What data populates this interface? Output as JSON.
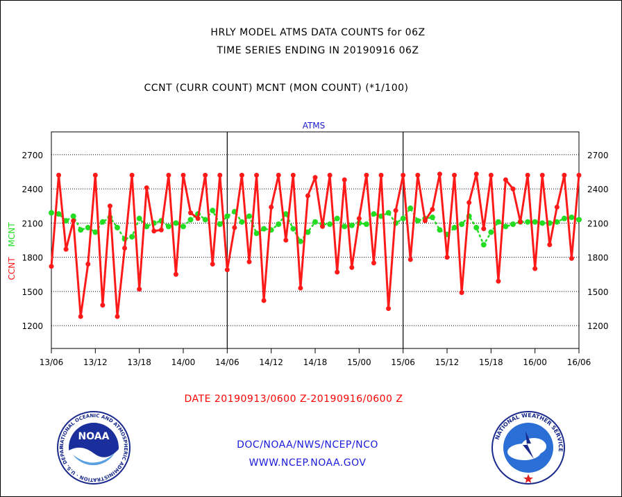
{
  "header": {
    "title_line1": "HRLY MODEL ATMS DATA COUNTS for 06Z",
    "title_line2": "TIME SERIES ENDING IN 20190916 06Z",
    "subtitle": "CCNT (CURR COUNT) MCNT (MON COUNT) (*1/100)"
  },
  "footer": {
    "date_range": "DATE 20190913/0600 Z-20190916/0600 Z",
    "credit_line1": "DOC/NOAA/NWS/NCEP/NCO",
    "credit_line2": "WWW.NCEP.NOAA.GOV"
  },
  "logos": {
    "noaa_badge": "NOAA",
    "noaa_ring": "NATIONAL OCEANIC AND ATMOSPHERIC ADMINISTRATION · U.S. DEPARTMENT OF COMMERCE",
    "nws_ring": "NATIONAL WEATHER SERVICE"
  },
  "colors": {
    "ccnt": "#ff1a1a",
    "mcnt": "#22dd22",
    "panel_label": "#1a1acc",
    "axis": "#000000"
  },
  "chart_data": {
    "type": "line",
    "panel_label": "ATMS",
    "ylabel_left": "CCNT",
    "ylabel_right": "MCNT",
    "ylim": [
      1000,
      2900
    ],
    "yticks": [
      1200,
      1500,
      1800,
      2100,
      2400,
      2700
    ],
    "xlim": [
      0,
      72
    ],
    "x_tick_labels": [
      "13/06",
      "13/12",
      "13/18",
      "14/00",
      "14/06",
      "14/12",
      "14/18",
      "15/00",
      "15/06",
      "15/12",
      "15/18",
      "16/00",
      "16/06"
    ],
    "x_tick_hours": [
      0,
      6,
      12,
      18,
      24,
      30,
      36,
      42,
      48,
      54,
      60,
      66,
      72
    ],
    "day_separators_hours": [
      24,
      48
    ],
    "grid": "horizontal dotted",
    "series": [
      {
        "name": "CCNT",
        "x": [
          0,
          1,
          2,
          3,
          4,
          5,
          6,
          7,
          8,
          9,
          10,
          11,
          12,
          13,
          14,
          15,
          16,
          17,
          18,
          19,
          20,
          21,
          22,
          23,
          24,
          25,
          26,
          27,
          28,
          29,
          30,
          31,
          32,
          33,
          34,
          35,
          36,
          37,
          38,
          39,
          40,
          41,
          42,
          43,
          44,
          45,
          46,
          47,
          48,
          49,
          50,
          51,
          52,
          53,
          54,
          55,
          56,
          57,
          58,
          59,
          60,
          61,
          62,
          63,
          64,
          65,
          66,
          67,
          68,
          69,
          70,
          71,
          72
        ],
        "values": [
          1720,
          2520,
          1870,
          2120,
          1280,
          1740,
          2520,
          1380,
          2250,
          1280,
          1880,
          2520,
          1520,
          2410,
          2030,
          2040,
          2520,
          1650,
          2520,
          2190,
          2140,
          2520,
          1740,
          2520,
          1690,
          2060,
          2520,
          1760,
          2520,
          1420,
          2240,
          2520,
          1950,
          2520,
          1530,
          2340,
          2500,
          2070,
          2520,
          1670,
          2480,
          1710,
          2140,
          2520,
          1750,
          2520,
          1350,
          2210,
          2520,
          1780,
          2520,
          2120,
          2220,
          2530,
          1800,
          2520,
          1490,
          2280,
          2530,
          2050,
          2520,
          1590,
          2480,
          2400,
          2110,
          2520,
          1700,
          2520,
          1910,
          2240,
          2520,
          1790,
          2520
        ]
      },
      {
        "name": "MCNT",
        "x": [
          0,
          1,
          2,
          3,
          4,
          5,
          6,
          7,
          8,
          9,
          10,
          11,
          12,
          13,
          14,
          15,
          16,
          17,
          18,
          19,
          20,
          21,
          22,
          23,
          24,
          25,
          26,
          27,
          28,
          29,
          30,
          31,
          32,
          33,
          34,
          35,
          36,
          37,
          38,
          39,
          40,
          41,
          42,
          43,
          44,
          45,
          46,
          47,
          48,
          49,
          50,
          51,
          52,
          53,
          54,
          55,
          56,
          57,
          58,
          59,
          60,
          61,
          62,
          63,
          64,
          65,
          66,
          67,
          68,
          69,
          70,
          71,
          72
        ],
        "values": [
          2190,
          2180,
          2120,
          2160,
          2040,
          2060,
          2020,
          2110,
          2150,
          2060,
          1960,
          1980,
          2140,
          2070,
          2100,
          2120,
          2070,
          2100,
          2070,
          2130,
          2180,
          2130,
          2210,
          2090,
          2160,
          2200,
          2110,
          2160,
          2010,
          2050,
          2040,
          2090,
          2180,
          2050,
          1940,
          2020,
          2110,
          2090,
          2090,
          2140,
          2070,
          2080,
          2100,
          2090,
          2180,
          2160,
          2190,
          2100,
          2140,
          2230,
          2120,
          2140,
          2150,
          2040,
          2000,
          2060,
          2090,
          2160,
          2060,
          1910,
          2020,
          2110,
          2070,
          2090,
          2110,
          2110,
          2110,
          2100,
          2100,
          2110,
          2140,
          2150,
          2130
        ]
      }
    ]
  }
}
